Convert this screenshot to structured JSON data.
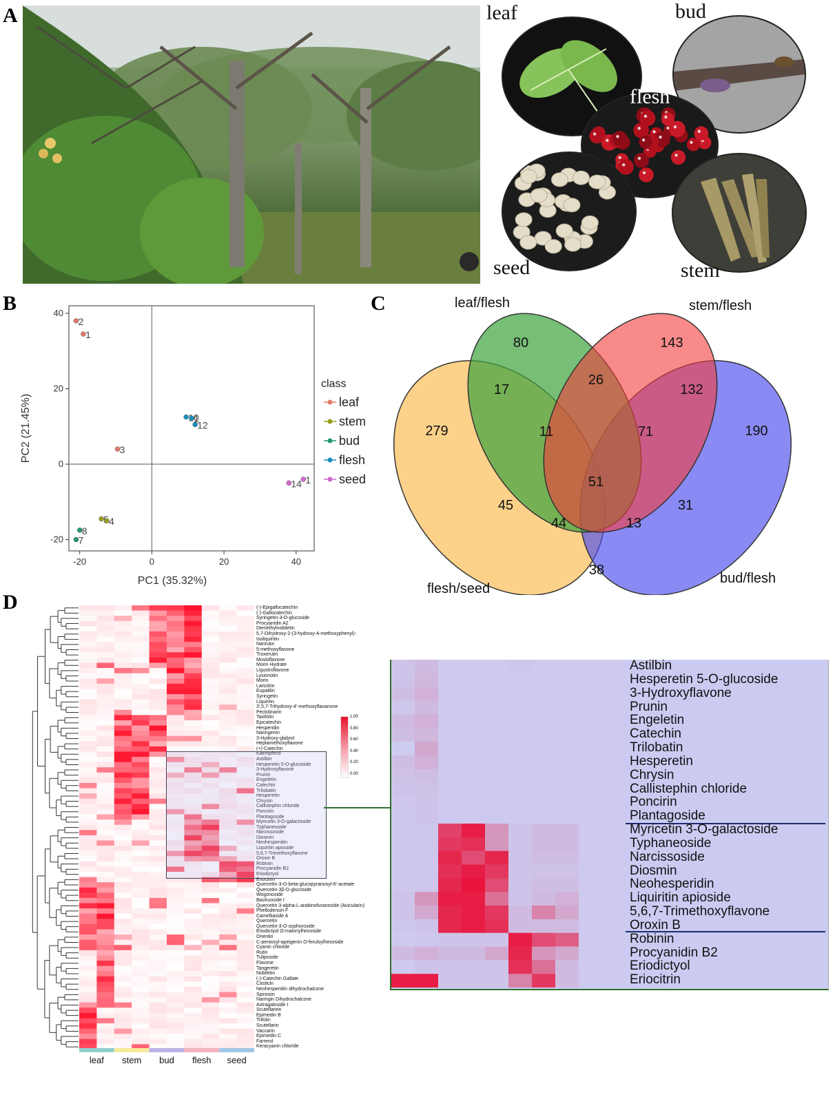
{
  "panels": {
    "a": "A",
    "b": "B",
    "c": "C",
    "d": "D"
  },
  "organs": [
    {
      "label": "leaf"
    },
    {
      "label": "bud"
    },
    {
      "label": "flesh"
    },
    {
      "label": "seed"
    },
    {
      "label": "stem"
    }
  ],
  "pca": {
    "xlabel": "PC1 (35.32%)",
    "ylabel": "PC2 (21.45%)",
    "xticks": [
      "-20",
      "0",
      "20",
      "40"
    ],
    "yticks": [
      "40",
      "20",
      "0",
      "-20"
    ],
    "legend_title": "class",
    "classes": [
      {
        "name": "leaf",
        "color": "#e07b6a"
      },
      {
        "name": "stem",
        "color": "#9a9a1e"
      },
      {
        "name": "bud",
        "color": "#1f9a6a"
      },
      {
        "name": "flesh",
        "color": "#1a8fc0"
      },
      {
        "name": "seed",
        "color": "#d067d0"
      }
    ],
    "points": [
      {
        "label": "2",
        "x": -21,
        "y": 38,
        "cls": 0
      },
      {
        "label": "1",
        "x": -19,
        "y": 34.5,
        "cls": 0
      },
      {
        "label": "3",
        "x": -9.5,
        "y": 4,
        "cls": 0
      },
      {
        "label": "10",
        "x": 9.5,
        "y": 12.5,
        "cls": 3
      },
      {
        "label": "1",
        "x": 11,
        "y": 12.2,
        "cls": 3
      },
      {
        "label": "12",
        "x": 12,
        "y": 10.5,
        "cls": 3
      },
      {
        "label": "1",
        "x": 42,
        "y": -4,
        "cls": 4
      },
      {
        "label": "14",
        "x": 38,
        "y": -5,
        "cls": 4
      },
      {
        "label": "5",
        "x": -14,
        "y": -14.5,
        "cls": 1
      },
      {
        "label": "4",
        "x": -12.5,
        "y": -15,
        "cls": 1
      },
      {
        "label": "8",
        "x": -20,
        "y": -17.5,
        "cls": 2
      },
      {
        "label": "7",
        "x": -21,
        "y": -20,
        "cls": 2
      }
    ],
    "xlim": [
      -23,
      45
    ],
    "ylim": [
      -23,
      42
    ]
  },
  "venn": {
    "set_labels": [
      "leaf/flesh",
      "stem/flesh",
      "flesh/seed",
      "bud/flesh"
    ],
    "counts": [
      "80",
      "143",
      "279",
      "17",
      "26",
      "132",
      "190",
      "11",
      "71",
      "51",
      "45",
      "31",
      "44",
      "13",
      "38"
    ]
  },
  "heatmap": {
    "compounds": [
      "(-)-Epigallocatechin",
      "(-)-Gallocatechin",
      "Syringetin-3-O-glucoside",
      "Procyanidin A2",
      "Demethylnobiletin",
      "5,7-Dihydroxy-2-(3-hydroxy-4-methoxyphenyl)-",
      "Isoliquiritin",
      "Narirutin",
      "5-methoxyflavone",
      "Troxerutin",
      "Mosloflavone",
      "Morin Hydrate",
      "Ligustroflavone",
      "Lysionotin",
      "Morin",
      "Laricitrin",
      "Eupatilin",
      "Syringetin",
      "Liquiritin",
      "3',5,7-Trihydroxy-4'-methoxyflavanone",
      "Pectolinarin",
      "Taxifolin",
      "Epicatechin",
      "Hesperidin",
      "Naringenin",
      "3-Hydroxy-glabrol",
      "Heptamethoxyflavone",
      "(+)-Catechin",
      "Kaempferol",
      "Astilbin",
      "Hesperetin 5-O-glucoside",
      "3-Hydroxyflavone",
      "Prunin",
      "Engeletin",
      "Catechin",
      "Trilobatin",
      "Hesperetin",
      "Chrysin",
      "Callistephin chloride",
      "Poncirin",
      "Plantagoside",
      "Myricetin 3-O-galactoside",
      "Typhaneoside",
      "Narcissoside",
      "Diosmin",
      "Neohesperidin",
      "Liquiritin apioside",
      "5,6,7-Trimethoxyflavone",
      "Oroxin B",
      "Robinin",
      "Procyanidin B2",
      "Eriodictyol",
      "Eriocitrin",
      "Quercetin-3-O-beta-glucopyranosyl-6'-acetate",
      "Quercetin-3β-D-glucoside",
      "Wogonoside",
      "Baohuoside I",
      "Quercetin 3-alpha-L-arabinofuranoside (Avicularin)",
      "Phellodensin F",
      "Camelliaside A",
      "Quercetin",
      "Quercetin-3-O-sophoroside",
      "Eriodictyol O-malonylhexoside",
      "Orientin",
      "C-pentosyl-apeigenin O-feruloylhexoside",
      "Cyanin chloride",
      "Rutin",
      "Tuliposide",
      "Flavone",
      "Tangeretin",
      "Nobiletin",
      "(-)-Catechin Gallate",
      "Casticin",
      "Neohesperidin dihydrochalcone",
      "Spinosin",
      "Naringin Dihydrochalcone",
      "Astragaloside I",
      "Scutellarein",
      "Epimedin B",
      "Trifolin",
      "Scutellarin",
      "Vaccarin",
      "Epimedin C",
      "Farrerol",
      "Keracyanin chloride"
    ],
    "groups": [
      "leaf",
      "stem",
      "bud",
      "flesh",
      "seed"
    ],
    "group_colors": [
      "#8fd0cf",
      "#f7ea9a",
      "#b9b3e6",
      "#f3b4c2",
      "#9ec7e8"
    ],
    "legend_ticks": [
      "1.00",
      "0.80",
      "0.60",
      "0.40",
      "0.20",
      "0.00"
    ],
    "zoom_compounds": [
      "Astilbin",
      "Hesperetin 5-O-glucoside",
      "3-Hydroxyflavone",
      "Prunin",
      "Engeletin",
      "Catechin",
      "Trilobatin",
      "Hesperetin",
      "Chrysin",
      "Callistephin chloride",
      "Poncirin",
      "Plantagoside",
      "Myricetin 3-O-galactoside",
      "Typhaneoside",
      "Narcissoside",
      "Diosmin",
      "Neohesperidin",
      "Liquiritin apioside",
      "5,6,7-Trimethoxyflavone",
      "Oroxin B",
      "Robinin",
      "Procyanidin B2",
      "Eriodictyol",
      "Eriocitrin"
    ],
    "zoom_values": [
      [
        0.05,
        0.1,
        0.02,
        0.02,
        0.02,
        0.03,
        0.02,
        0.02,
        0.02,
        0.02
      ],
      [
        0.05,
        0.12,
        0.02,
        0.02,
        0.02,
        0.02,
        0.02,
        0.02,
        0.02,
        0.02
      ],
      [
        0.08,
        0.15,
        0.02,
        0.02,
        0.02,
        0.02,
        0.02,
        0.02,
        0.02,
        0.02
      ],
      [
        0.04,
        0.1,
        0.02,
        0.02,
        0.02,
        0.02,
        0.02,
        0.02,
        0.02,
        0.02
      ],
      [
        0.1,
        0.15,
        0.02,
        0.02,
        0.02,
        0.02,
        0.02,
        0.02,
        0.02,
        0.02
      ],
      [
        0.08,
        0.12,
        0.02,
        0.02,
        0.02,
        0.02,
        0.02,
        0.02,
        0.02,
        0.02
      ],
      [
        0.0,
        0.2,
        0.02,
        0.02,
        0.02,
        0.02,
        0.02,
        0.02,
        0.02,
        0.02
      ],
      [
        0.08,
        0.15,
        0.02,
        0.02,
        0.02,
        0.02,
        0.02,
        0.02,
        0.02,
        0.02
      ],
      [
        0.06,
        0.08,
        0.02,
        0.02,
        0.02,
        0.02,
        0.02,
        0.02,
        0.02,
        0.02
      ],
      [
        0.05,
        0.06,
        0.02,
        0.02,
        0.02,
        0.02,
        0.02,
        0.02,
        0.02,
        0.02
      ],
      [
        0.04,
        0.05,
        0.02,
        0.02,
        0.02,
        0.02,
        0.02,
        0.02,
        0.02,
        0.02
      ],
      [
        0.03,
        0.05,
        0.02,
        0.02,
        0.02,
        0.02,
        0.02,
        0.02,
        0.02,
        0.02
      ],
      [
        0.03,
        0.04,
        0.75,
        0.95,
        0.3,
        0.05,
        0.1,
        0.1,
        0.02,
        0.02
      ],
      [
        0.03,
        0.04,
        0.8,
        0.85,
        0.3,
        0.05,
        0.1,
        0.1,
        0.02,
        0.02
      ],
      [
        0.03,
        0.04,
        0.9,
        0.7,
        0.9,
        0.05,
        0.08,
        0.08,
        0.02,
        0.02
      ],
      [
        0.03,
        0.04,
        0.85,
        0.95,
        0.8,
        0.05,
        0.06,
        0.06,
        0.02,
        0.02
      ],
      [
        0.03,
        0.04,
        0.9,
        1.0,
        0.7,
        0.05,
        0.08,
        0.08,
        0.02,
        0.02
      ],
      [
        0.05,
        0.3,
        0.95,
        0.95,
        0.5,
        0.05,
        0.1,
        0.15,
        0.02,
        0.02
      ],
      [
        0.05,
        0.2,
        0.9,
        0.95,
        0.8,
        0.1,
        0.4,
        0.2,
        0.02,
        0.02
      ],
      [
        0.03,
        0.05,
        0.9,
        0.95,
        0.85,
        0.1,
        0.1,
        0.1,
        0.02,
        0.02
      ],
      [
        0.02,
        0.03,
        0.05,
        0.05,
        0.05,
        0.95,
        0.7,
        0.6,
        0.02,
        0.02
      ],
      [
        0.1,
        0.15,
        0.1,
        0.1,
        0.2,
        0.9,
        0.3,
        0.2,
        0.02,
        0.02
      ],
      [
        0.02,
        0.05,
        0.05,
        0.05,
        0.05,
        0.85,
        0.5,
        0.1,
        0.02,
        0.02
      ],
      [
        0.95,
        0.95,
        0.05,
        0.05,
        0.05,
        0.4,
        0.8,
        0.1,
        0.02,
        0.02
      ]
    ]
  }
}
